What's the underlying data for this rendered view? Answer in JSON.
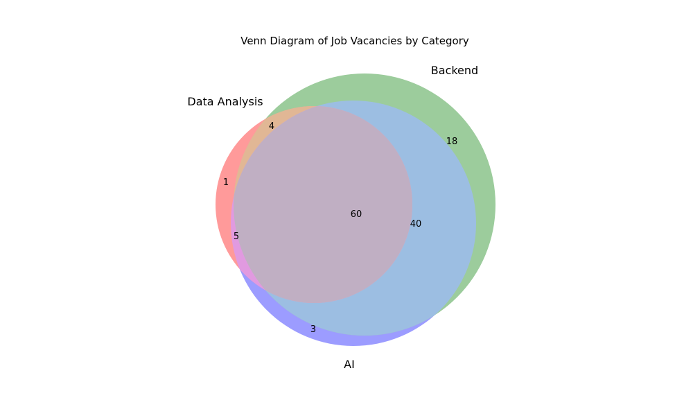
{
  "title": "Venn Diagram of Job Vacancies by Category",
  "sets": [
    {
      "id": "data-analysis",
      "label": "Data Analysis",
      "color": "#ff0000"
    },
    {
      "id": "backend",
      "label": "Backend",
      "color": "#008000"
    },
    {
      "id": "ai",
      "label": "AI",
      "color": "#0000ff"
    }
  ],
  "regions": [
    {
      "id": "data-analysis-only",
      "sets": [
        "Data Analysis"
      ],
      "value": "1"
    },
    {
      "id": "data-analysis-backend",
      "sets": [
        "Data Analysis",
        "Backend"
      ],
      "value": "4"
    },
    {
      "id": "backend-only",
      "sets": [
        "Backend"
      ],
      "value": "18"
    },
    {
      "id": "data-analysis-ai",
      "sets": [
        "Data Analysis",
        "AI"
      ],
      "value": "5"
    },
    {
      "id": "all-three",
      "sets": [
        "Data Analysis",
        "Backend",
        "AI"
      ],
      "value": "60"
    },
    {
      "id": "backend-ai",
      "sets": [
        "Backend",
        "AI"
      ],
      "value": "40"
    },
    {
      "id": "ai-only",
      "sets": [
        "AI"
      ],
      "value": "3"
    }
  ]
}
